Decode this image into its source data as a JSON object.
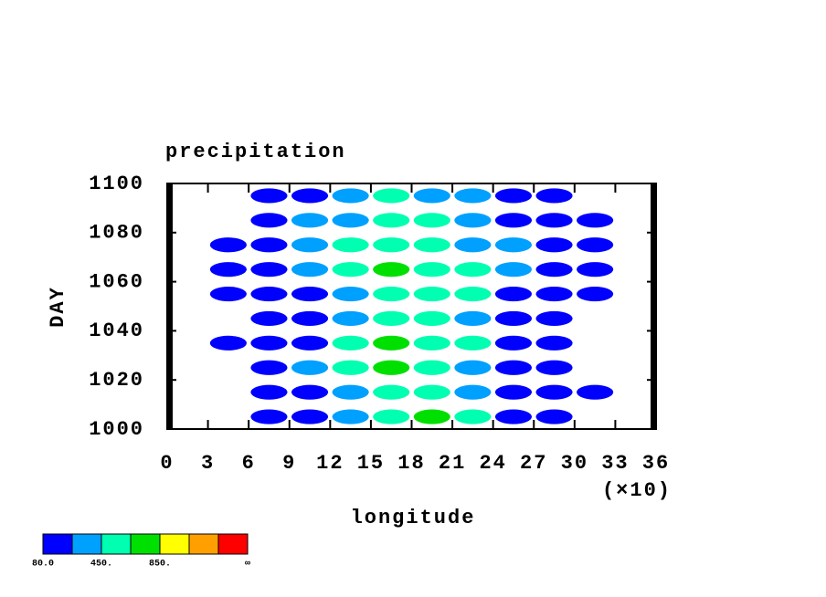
{
  "chart_data": {
    "type": "contour",
    "title": "precipitation",
    "x_label": "longitude",
    "y_label": "DAY",
    "x_multiplier": "(×10)",
    "xlim": [
      0,
      36
    ],
    "xticks": [
      0,
      3,
      6,
      9,
      12,
      15,
      18,
      21,
      24,
      27,
      30,
      33,
      36
    ],
    "ylim": [
      1000,
      1100
    ],
    "yticks": [
      1000,
      1020,
      1040,
      1060,
      1080,
      1100
    ],
    "x": [
      1.5,
      4.5,
      7.5,
      10.5,
      13.5,
      16.5,
      19.5,
      22.5,
      25.5,
      28.5,
      31.5,
      34.5
    ],
    "y": [
      1005,
      1015,
      1025,
      1035,
      1045,
      1055,
      1065,
      1075,
      1085,
      1095
    ],
    "z": [
      [
        0,
        40,
        90,
        150,
        300,
        500,
        700,
        500,
        200,
        100,
        0,
        0
      ],
      [
        0,
        60,
        120,
        250,
        400,
        600,
        500,
        350,
        250,
        120,
        80,
        0
      ],
      [
        0,
        50,
        150,
        300,
        500,
        700,
        600,
        400,
        200,
        100,
        0,
        0
      ],
      [
        0,
        80,
        120,
        200,
        450,
        650,
        600,
        450,
        250,
        120,
        60,
        0
      ],
      [
        0,
        40,
        100,
        200,
        350,
        500,
        600,
        400,
        200,
        100,
        40,
        0
      ],
      [
        40,
        120,
        150,
        250,
        400,
        600,
        550,
        450,
        250,
        120,
        80,
        0
      ],
      [
        60,
        80,
        120,
        300,
        450,
        650,
        600,
        500,
        300,
        150,
        90,
        0
      ],
      [
        50,
        90,
        200,
        350,
        450,
        550,
        500,
        400,
        350,
        200,
        100,
        40
      ],
      [
        0,
        60,
        150,
        300,
        400,
        500,
        450,
        350,
        250,
        150,
        90,
        0
      ],
      [
        0,
        40,
        100,
        250,
        400,
        500,
        400,
        300,
        200,
        120,
        60,
        0
      ]
    ],
    "levels": [
      80,
      265,
      450,
      650,
      850,
      1050,
      1250
    ],
    "colors": [
      "#0000ff",
      "#00a0ff",
      "#00ffb0",
      "#00e000",
      "#ffff00",
      "#ffa000",
      "#ff0000"
    ],
    "level_labels": [
      {
        "value": 80,
        "label": "80.0"
      },
      {
        "value": 450,
        "label": "450."
      },
      {
        "value": 850,
        "label": "850."
      }
    ],
    "top_label": "∞"
  }
}
